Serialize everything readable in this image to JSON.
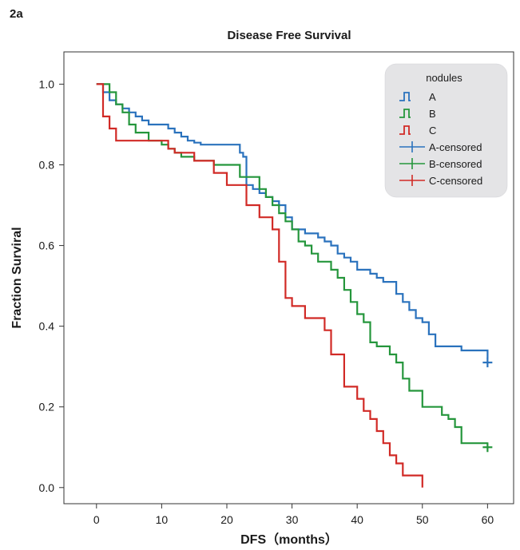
{
  "panel_label": "2a",
  "chart_data": {
    "type": "line",
    "subtype": "kaplan-meier step",
    "title": "Disease Free Survival",
    "xlabel": "DFS（months）",
    "ylabel": "Fraction Surviral",
    "xlim": [
      -5,
      64
    ],
    "ylim": [
      -0.04,
      1.08
    ],
    "xticks": [
      0,
      10,
      20,
      30,
      40,
      50,
      60
    ],
    "yticks": [
      0.0,
      0.2,
      0.4,
      0.6,
      0.8,
      1.0
    ],
    "ytick_labels": [
      "0.0",
      "0.2",
      "0.4",
      "0.6",
      "0.8",
      "1.0"
    ],
    "grid": false,
    "legend": {
      "title": "nodules",
      "placement": "top-right",
      "entries": [
        {
          "label": "A",
          "kind": "step",
          "color": "#2a72bd"
        },
        {
          "label": "B",
          "kind": "step",
          "color": "#25963c"
        },
        {
          "label": "C",
          "kind": "step",
          "color": "#d12a26"
        },
        {
          "label": "A-censored",
          "kind": "cross",
          "color": "#2a72bd"
        },
        {
          "label": "B-censored",
          "kind": "cross",
          "color": "#25963c"
        },
        {
          "label": "C-censored",
          "kind": "cross",
          "color": "#d12a26"
        }
      ]
    },
    "series": [
      {
        "name": "A",
        "color": "#2a72bd",
        "x": [
          0,
          1,
          2,
          3,
          4,
          5,
          6,
          7,
          8,
          11,
          12,
          13,
          14,
          15,
          16,
          22,
          22.5,
          23,
          24,
          25,
          26,
          27,
          28,
          29,
          30,
          32,
          34,
          35,
          36,
          37,
          38,
          39,
          40,
          42,
          43,
          44,
          46,
          47,
          48,
          49,
          50,
          51,
          52,
          54,
          56,
          60
        ],
        "y": [
          1.0,
          0.98,
          0.96,
          0.95,
          0.94,
          0.93,
          0.92,
          0.91,
          0.9,
          0.89,
          0.88,
          0.87,
          0.86,
          0.855,
          0.85,
          0.83,
          0.82,
          0.75,
          0.74,
          0.73,
          0.72,
          0.71,
          0.7,
          0.67,
          0.64,
          0.63,
          0.62,
          0.61,
          0.6,
          0.58,
          0.57,
          0.56,
          0.54,
          0.53,
          0.52,
          0.51,
          0.48,
          0.46,
          0.44,
          0.42,
          0.41,
          0.38,
          0.35,
          0.35,
          0.34,
          0.32
        ],
        "censored": [
          {
            "x": 60,
            "y": 0.31
          }
        ]
      },
      {
        "name": "B",
        "color": "#25963c",
        "x": [
          0,
          2,
          3,
          4,
          5,
          6,
          8,
          10,
          11,
          12,
          13,
          15,
          18,
          22,
          23,
          25,
          26,
          27,
          28,
          29,
          30,
          31,
          32,
          33,
          34,
          36,
          37,
          38,
          39,
          40,
          41,
          42,
          43,
          45,
          46,
          47,
          48,
          50,
          52,
          53,
          54,
          55,
          56,
          58,
          60
        ],
        "y": [
          1.0,
          0.98,
          0.95,
          0.93,
          0.9,
          0.88,
          0.86,
          0.85,
          0.84,
          0.83,
          0.82,
          0.81,
          0.8,
          0.77,
          0.77,
          0.74,
          0.72,
          0.7,
          0.68,
          0.66,
          0.64,
          0.61,
          0.6,
          0.58,
          0.56,
          0.54,
          0.52,
          0.49,
          0.46,
          0.43,
          0.41,
          0.36,
          0.35,
          0.33,
          0.31,
          0.27,
          0.24,
          0.2,
          0.2,
          0.18,
          0.17,
          0.15,
          0.11,
          0.11,
          0.11
        ],
        "censored": [
          {
            "x": 60,
            "y": 0.1
          }
        ]
      },
      {
        "name": "C",
        "color": "#d12a26",
        "x": [
          0,
          1,
          2,
          3,
          11,
          12,
          15,
          18,
          20,
          23,
          25,
          27,
          28,
          29,
          30,
          32,
          35,
          36,
          38,
          40,
          41,
          42,
          43,
          44,
          45,
          46,
          47,
          48,
          50
        ],
        "y": [
          1.0,
          0.92,
          0.89,
          0.86,
          0.84,
          0.83,
          0.81,
          0.78,
          0.75,
          0.7,
          0.67,
          0.64,
          0.56,
          0.47,
          0.45,
          0.42,
          0.39,
          0.33,
          0.25,
          0.22,
          0.19,
          0.17,
          0.14,
          0.11,
          0.08,
          0.06,
          0.03,
          0.03,
          0.0
        ],
        "censored": []
      }
    ]
  }
}
